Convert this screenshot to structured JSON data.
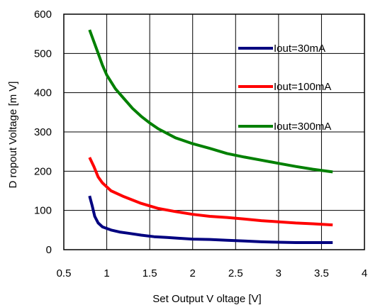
{
  "chart_data": {
    "type": "line",
    "title": "",
    "xlabel": "Set Output V oltage [V]",
    "ylabel": "D ropout Voltage [m V]",
    "xlim": [
      0.5,
      4
    ],
    "ylim": [
      0,
      600
    ],
    "xticks": [
      0.5,
      1,
      1.5,
      2,
      2.5,
      3,
      3.5,
      4
    ],
    "xtick_labels": [
      "0.5",
      "1",
      "1.5",
      "2",
      "2.5",
      "3",
      "3.5",
      "4"
    ],
    "yticks": [
      0,
      100,
      200,
      300,
      400,
      500,
      600
    ],
    "ytick_labels": [
      "0",
      "100",
      "200",
      "300",
      "400",
      "500",
      "600"
    ],
    "grid": true,
    "legend_position": "top-right",
    "series": [
      {
        "name": "Iout=30mA",
        "color": "#000080",
        "x": [
          0.8,
          0.83,
          0.86,
          0.9,
          0.95,
          1.05,
          1.15,
          1.25,
          1.4,
          1.55,
          1.7,
          1.85,
          2.0,
          2.2,
          2.4,
          2.6,
          2.8,
          3.0,
          3.2,
          3.4,
          3.63
        ],
        "y": [
          137,
          112,
          85,
          68,
          58,
          50,
          45,
          42,
          37,
          33,
          31,
          29,
          27,
          26,
          24,
          22,
          20,
          19,
          18,
          18,
          18
        ]
      },
      {
        "name": "Iout=100mA",
        "color": "#ff0000",
        "x": [
          0.8,
          0.85,
          0.9,
          0.95,
          1.05,
          1.2,
          1.4,
          1.6,
          1.8,
          2.0,
          2.2,
          2.4,
          2.6,
          2.8,
          3.0,
          3.2,
          3.4,
          3.63
        ],
        "y": [
          235,
          212,
          185,
          170,
          150,
          135,
          118,
          105,
          97,
          90,
          85,
          82,
          78,
          74,
          71,
          68,
          66,
          63
        ]
      },
      {
        "name": "Iout=300mA",
        "color": "#008000",
        "x": [
          0.8,
          0.85,
          0.9,
          0.95,
          1.0,
          1.1,
          1.2,
          1.3,
          1.4,
          1.5,
          1.6,
          1.8,
          2.0,
          2.2,
          2.4,
          2.6,
          2.8,
          3.0,
          3.2,
          3.4,
          3.63
        ],
        "y": [
          560,
          530,
          500,
          470,
          445,
          410,
          385,
          360,
          340,
          323,
          308,
          285,
          270,
          258,
          245,
          236,
          228,
          220,
          212,
          205,
          198
        ]
      }
    ]
  }
}
